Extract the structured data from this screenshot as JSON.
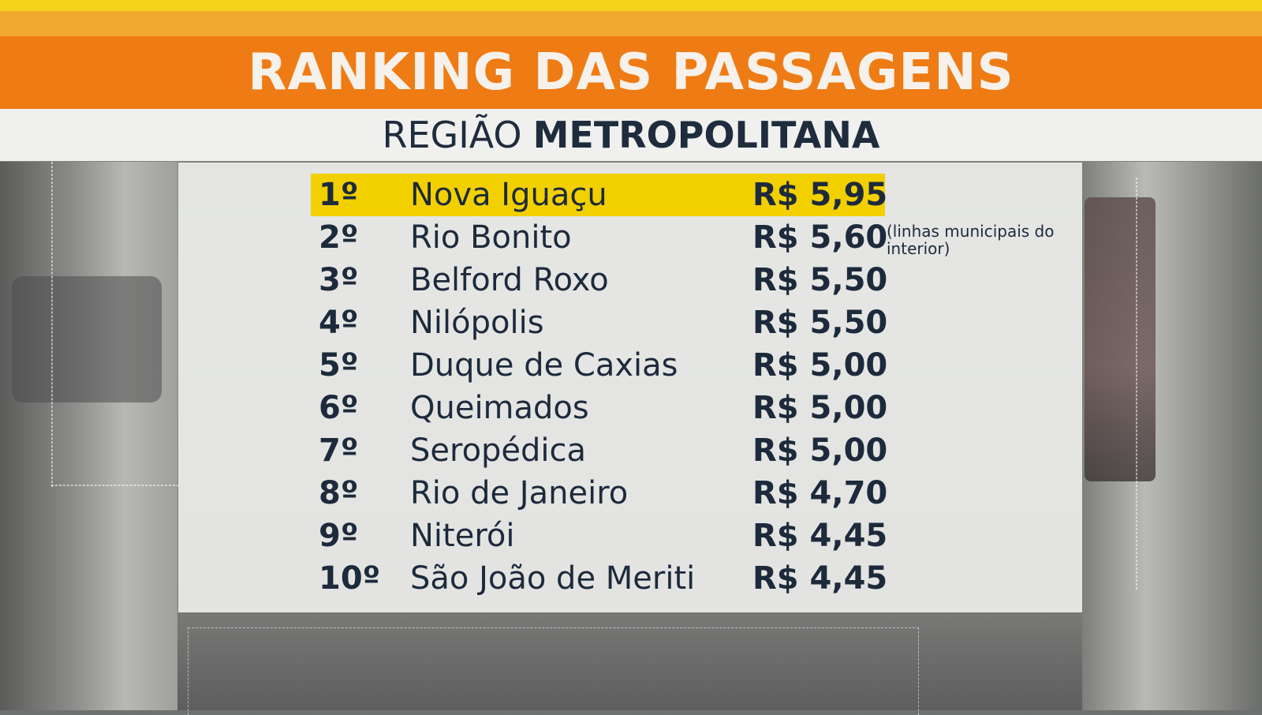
{
  "header": {
    "title": "RANKING DAS PASSAGENS",
    "subtitle_light": "REGIÃO",
    "subtitle_bold": "METROPOLITANA"
  },
  "colors": {
    "top_yellow": "#f2d21a",
    "top_amber": "#f0a92e",
    "title_bar": "#ee7b14",
    "highlight": "#f2d000",
    "text": "#1d2a3b"
  },
  "ranking": [
    {
      "rank": "1º",
      "city": "Nova Iguaçu",
      "price": "R$ 5,95",
      "highlight": true
    },
    {
      "rank": "2º",
      "city": "Rio Bonito",
      "price": "R$ 5,60"
    },
    {
      "rank": "3º",
      "city": "Belford Roxo",
      "price": "R$ 5,50"
    },
    {
      "rank": "4º",
      "city": "Nilópolis",
      "price": "R$ 5,50"
    },
    {
      "rank": "5º",
      "city": "Duque de Caxias",
      "price": "R$ 5,00"
    },
    {
      "rank": "6º",
      "city": "Queimados",
      "price": "R$ 5,00"
    },
    {
      "rank": "7º",
      "city": "Seropédica",
      "price": "R$ 5,00"
    },
    {
      "rank": "8º",
      "city": "Rio de Janeiro",
      "price": "R$ 4,70"
    },
    {
      "rank": "9º",
      "city": "Niterói",
      "price": "R$ 4,45"
    },
    {
      "rank": "10º",
      "city": "São João de Meriti",
      "price": "R$ 4,45"
    }
  ],
  "note": "(linhas municipais do interior)"
}
